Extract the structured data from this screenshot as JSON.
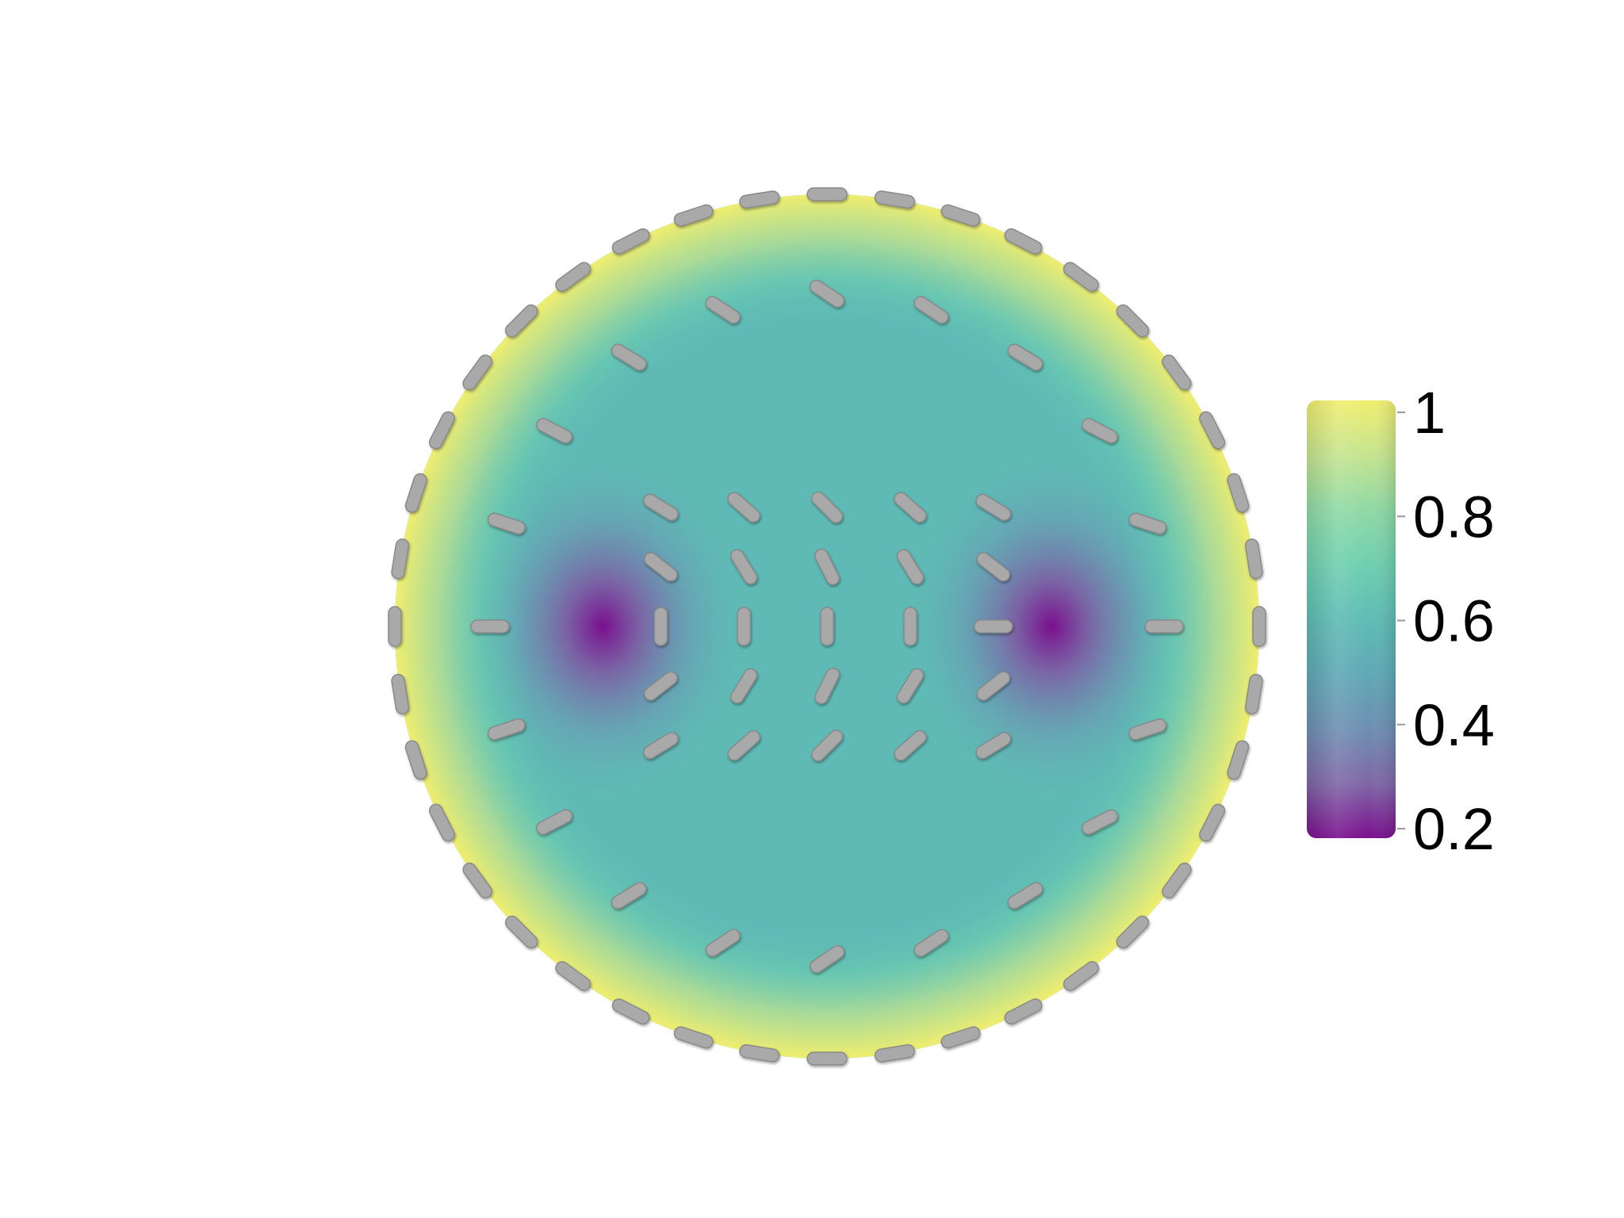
{
  "figure": {
    "description_type": "director-field-on-disk",
    "colormap": "viridis",
    "background_color": "#ffffff",
    "director_color": "#a9a9a9"
  },
  "colorbar": {
    "min": 0.2,
    "max": 1,
    "ticks": [
      {
        "value": 1,
        "label": "1"
      },
      {
        "value": 0.8,
        "label": "0.8"
      },
      {
        "value": 0.6,
        "label": "0.6"
      },
      {
        "value": 0.4,
        "label": "0.4"
      },
      {
        "value": 0.2,
        "label": "0.2"
      }
    ],
    "stops": [
      {
        "value": 0.2,
        "color": "#7a0f8e"
      },
      {
        "value": 0.3,
        "color": "#7f67a6"
      },
      {
        "value": 0.4,
        "color": "#6e8fb2"
      },
      {
        "value": 0.5,
        "color": "#5fa8b5"
      },
      {
        "value": 0.6,
        "color": "#5ebcb4"
      },
      {
        "value": 0.7,
        "color": "#6ecfb0"
      },
      {
        "value": 0.8,
        "color": "#8fd9a5"
      },
      {
        "value": 0.9,
        "color": "#c5e48f"
      },
      {
        "value": 1,
        "color": "#f0ee6e"
      }
    ]
  },
  "field": {
    "defects": [
      {
        "name": "left-defect",
        "x": -0.52,
        "y": 0.0,
        "value": 0.2
      },
      {
        "name": "right-defect",
        "x": 0.52,
        "y": 0.0,
        "value": 0.2
      }
    ],
    "interior_value": 0.62,
    "boundary_value": 0.95
  }
}
